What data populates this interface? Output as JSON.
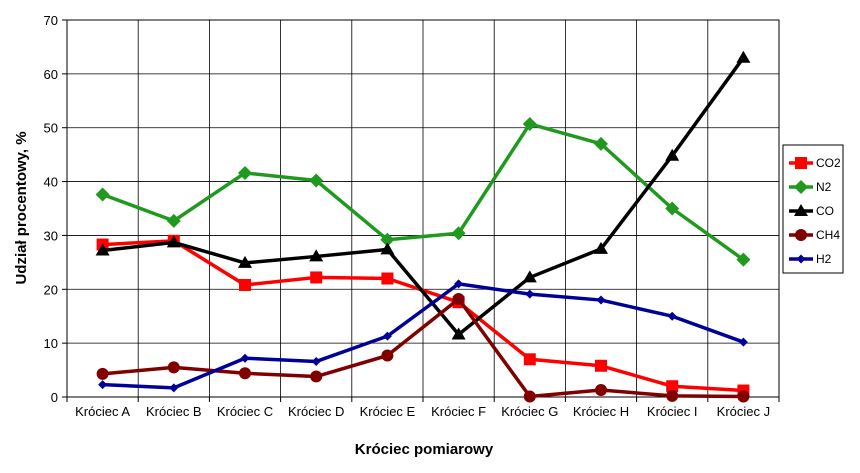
{
  "chart_data": {
    "type": "line",
    "title": "",
    "xlabel": "Króciec pomiarowy",
    "ylabel": "Udział procentowy, %",
    "ylim": [
      0,
      70
    ],
    "ytick_step": 10,
    "grid": true,
    "legend_position": "right",
    "categories": [
      "Króciec A",
      "Króciec B",
      "Króciec C",
      "Króciec D",
      "Króciec E",
      "Króciec F",
      "Króciec G",
      "Króciec H",
      "Króciec I",
      "Króciec J"
    ],
    "series": [
      {
        "name": "CO2",
        "color": "#ff0000",
        "marker": "square",
        "values": [
          28.3,
          29.0,
          20.8,
          22.2,
          22.0,
          17.6,
          7.0,
          5.8,
          2.0,
          1.2
        ]
      },
      {
        "name": "N2",
        "color": "#1f9a1f",
        "marker": "diamond",
        "values": [
          37.6,
          32.7,
          41.6,
          40.2,
          29.2,
          30.4,
          50.7,
          47.0,
          35.0,
          25.5
        ]
      },
      {
        "name": "CO",
        "color": "#000000",
        "marker": "triangle",
        "values": [
          27.2,
          28.7,
          24.9,
          26.1,
          27.4,
          11.6,
          22.2,
          27.5,
          44.8,
          63.0
        ]
      },
      {
        "name": "CH4",
        "color": "#800000",
        "marker": "circle",
        "values": [
          4.3,
          5.5,
          4.4,
          3.8,
          7.7,
          18.2,
          0.1,
          1.3,
          0.2,
          0.1
        ]
      },
      {
        "name": "H2",
        "color": "#000099",
        "marker": "diamond-small",
        "values": [
          2.3,
          1.7,
          7.2,
          6.6,
          11.3,
          21.0,
          19.1,
          18.0,
          15.0,
          10.2
        ]
      }
    ]
  }
}
